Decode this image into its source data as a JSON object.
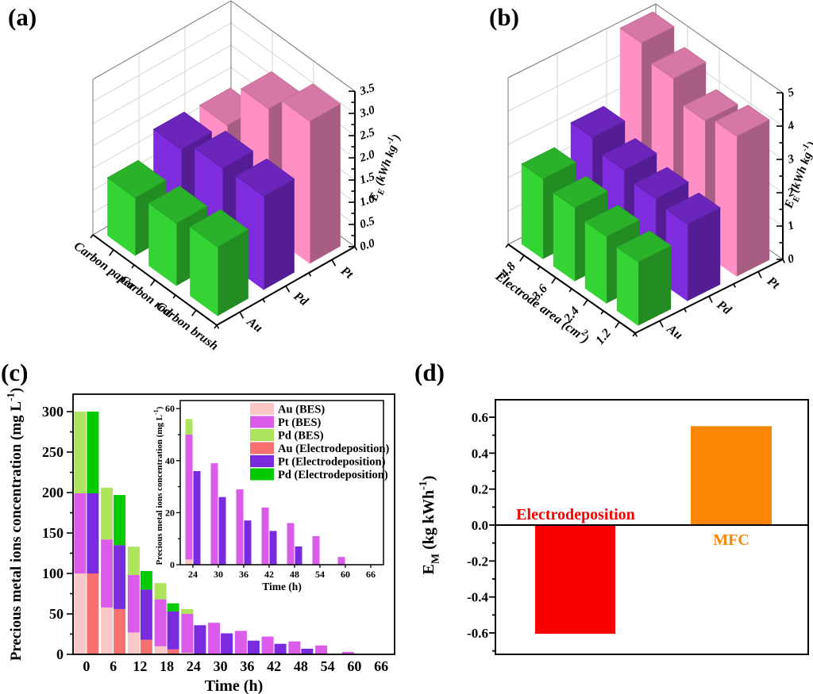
{
  "panels": {
    "a": {
      "letter": "(a)"
    },
    "b": {
      "letter": "(b)"
    },
    "c": {
      "letter": "(c)"
    },
    "d": {
      "letter": "(d)"
    }
  },
  "chart_data": [
    {
      "panel": "a",
      "type": "bar3d",
      "categories": [
        "Carbon paper",
        "Carbon rod",
        "Carbon brush"
      ],
      "depth_categories": [
        "Au",
        "Pd",
        "Pt"
      ],
      "zlabel": "E_E (kWh kg-1)",
      "zlabel_segments": [
        {
          "t": "E"
        },
        {
          "t": "E",
          "s": "sub"
        },
        {
          "t": " (kWh kg"
        },
        {
          "t": "-1",
          "s": "sup"
        },
        {
          "t": ")"
        }
      ],
      "zlim": [
        0,
        3.5
      ],
      "ztick": 0.5,
      "ztick_decimals": 1,
      "grid": true,
      "series": [
        {
          "name": "Au",
          "color": "#33D433",
          "values": [
            1.3,
            1.4,
            1.55
          ]
        },
        {
          "name": "Pd",
          "color": "#7F2CDF",
          "values": [
            1.8,
            2.05,
            2.1
          ]
        },
        {
          "name": "Pt",
          "color": "#FF8FC5",
          "values": [
            1.75,
            2.8,
            3.2
          ]
        }
      ]
    },
    {
      "panel": "b",
      "type": "bar3d",
      "categories": [
        "4.8",
        "3.6",
        "2.4",
        "1.2"
      ],
      "depth_categories": [
        "Au",
        "Pd",
        "Pt"
      ],
      "xlabel": "Electrode area (cm2)",
      "xlabel_segments": [
        {
          "t": "Electrode area (cm"
        },
        {
          "t": "2",
          "s": "sup"
        },
        {
          "t": ")"
        }
      ],
      "zlabel": "E_E (kWh kg-1)",
      "zlabel_segments": [
        {
          "t": "E"
        },
        {
          "t": "E",
          "s": "sub"
        },
        {
          "t": " (kWh kg"
        },
        {
          "t": "-1",
          "s": "sup"
        },
        {
          "t": ")"
        }
      ],
      "zlim": [
        0,
        5
      ],
      "ztick": 1,
      "ztick_decimals": 0,
      "grid": true,
      "series": [
        {
          "name": "Au",
          "color": "#33D433",
          "values": [
            2.4,
            2.2,
            2.0,
            1.9
          ]
        },
        {
          "name": "Pd",
          "color": "#7F2CDF",
          "values": [
            2.9,
            2.6,
            2.4,
            2.3
          ]
        },
        {
          "name": "Pt",
          "color": "#FF8FC5",
          "values": [
            5.0,
            4.6,
            4.0,
            4.2
          ]
        }
      ]
    },
    {
      "panel": "c",
      "type": "stacked-grouped-bar",
      "xlabel": "Time (h)",
      "ylabel": "Precious metal ions concentration (mg L-1)",
      "ylabel_segments": [
        {
          "t": "Precious metal ions concentration (mg L"
        },
        {
          "t": "-1",
          "s": "sup"
        },
        {
          "t": ")"
        }
      ],
      "ylim": [
        0,
        300
      ],
      "ytick": 50,
      "yminor": 25,
      "categories": [
        "0",
        "6",
        "12",
        "18",
        "24",
        "30",
        "36",
        "42",
        "48",
        "54",
        "60",
        "66"
      ],
      "stack_order": [
        "Au",
        "Pt",
        "Pd"
      ],
      "groups": [
        {
          "name": "BES",
          "colors": {
            "Au": "#F9C7C6",
            "Pt": "#DB5CEB",
            "Pd": "#ADE35D"
          },
          "values": {
            "Au": [
              100,
              58,
              27,
              10,
              2,
              0,
              0,
              0,
              0,
              0,
              0,
              0
            ],
            "Pt": [
              99,
              84,
              71,
              58,
              48,
              39,
              29,
              22,
              16,
              11,
              3,
              0
            ],
            "Pd": [
              101,
              64,
              35,
              20,
              6,
              0,
              0,
              0,
              0,
              0,
              0,
              0
            ]
          }
        },
        {
          "name": "Electrodeposition",
          "colors": {
            "Au": "#F87170",
            "Pt": "#7A2BDE",
            "Pd": "#02CB02"
          },
          "values": {
            "Au": [
              100,
              56,
              18,
              6,
              0,
              0,
              0,
              0,
              0,
              0,
              0,
              0
            ],
            "Pt": [
              99,
              79,
              62,
              47,
              36,
              26,
              17,
              13,
              7,
              0,
              0,
              0
            ],
            "Pd": [
              101,
              62,
              23,
              10,
              0,
              0,
              0,
              0,
              0,
              0,
              0,
              0
            ]
          }
        }
      ],
      "legend": [
        {
          "label": "Au (BES)",
          "color": "#F9C7C6"
        },
        {
          "label": "Pt (BES)",
          "color": "#DB5CEB"
        },
        {
          "label": "Pd (BES)",
          "color": "#ADE35D"
        },
        {
          "label": "Au (Electrodeposition)",
          "color": "#F87170"
        },
        {
          "label": "Pt (Electrodeposition)",
          "color": "#7A2BDE"
        },
        {
          "label": "Pd (Electrodeposition)",
          "color": "#02CB02"
        }
      ],
      "inset": {
        "ylim": [
          0,
          60
        ],
        "ytick": 20,
        "yminor": 10,
        "start_index": 4,
        "xlabel": "Time (h)"
      }
    },
    {
      "panel": "d",
      "type": "bar",
      "ylabel": "E_M (kg kWh-1)",
      "ylabel_segments": [
        {
          "t": "E"
        },
        {
          "t": "M",
          "s": "sub"
        },
        {
          "t": " (kg kWh"
        },
        {
          "t": "-1",
          "s": "sup"
        },
        {
          "t": ")"
        }
      ],
      "ylim": [
        -0.72,
        0.7
      ],
      "ytick": 0.2,
      "yminor": 0.1,
      "bars": [
        {
          "label": "Electrodeposition",
          "value": -0.605,
          "color": "#F80000",
          "label_color": "#F80000",
          "label_side": "above-axis"
        },
        {
          "label": "MFC",
          "value": 0.55,
          "color": "#FB8603",
          "label_color": "#FB8603",
          "label_side": "below-axis"
        }
      ]
    }
  ]
}
